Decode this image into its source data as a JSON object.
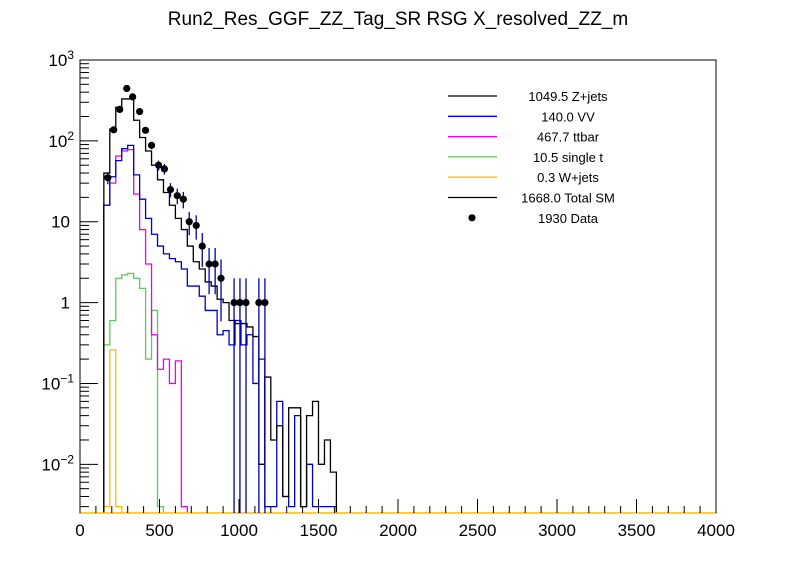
{
  "chart_data": {
    "type": "histogram",
    "title": "Run2_Res_GGF_ZZ_Tag_SR RSG  X_resolved_ZZ_m",
    "xlabel": "",
    "ylabel": "",
    "xlim": [
      0,
      4000
    ],
    "ylim": [
      0.0025,
      1000
    ],
    "yscale": "log",
    "grid": false,
    "legend_position": "top-right",
    "x_ticks": [
      "0",
      "500",
      "1000",
      "1500",
      "2000",
      "2500",
      "3000",
      "3500",
      "4000"
    ],
    "x_tick_values": [
      0,
      500,
      1000,
      1500,
      2000,
      2500,
      3000,
      3500,
      4000
    ],
    "y_ticks": [
      {
        "value": 1000,
        "base": "10",
        "exp": "3"
      },
      {
        "value": 100,
        "base": "10",
        "exp": "2"
      },
      {
        "value": 10,
        "base": "10",
        "exp": ""
      },
      {
        "value": 1,
        "base": "1",
        "exp": ""
      },
      {
        "value": 0.1,
        "base": "10",
        "exp": "−1"
      },
      {
        "value": 0.01,
        "base": "10",
        "exp": "−2"
      }
    ],
    "bin_edges_start": 150,
    "bin_width": 37.5,
    "series": [
      {
        "name": "Total SM",
        "color": "#000000",
        "values": [
          40,
          140,
          260,
          330,
          330,
          180,
          110,
          75,
          50,
          33,
          23,
          16,
          11,
          8,
          5,
          3.2,
          2.6,
          1.8,
          1.6,
          1.1,
          1.0,
          0.6,
          0.55,
          0.55,
          0.5,
          0.38,
          0.01,
          0.12,
          0.02,
          0.03,
          0.004,
          0.05,
          0.05,
          0.003,
          0.04,
          0.06,
          0.01,
          0.02,
          0.008
        ]
      },
      {
        "name": "VV",
        "color": "#0000cc",
        "values": [
          16,
          36,
          57,
          80,
          88,
          38,
          19,
          11,
          7,
          5,
          4,
          3.5,
          3.2,
          2.6,
          1.6,
          1.6,
          1.2,
          0.8,
          0.8,
          0.4,
          0.45,
          0.3,
          0.6,
          0.3,
          0.4,
          0.1,
          0.2,
          0.003,
          0.003,
          0.06,
          0.004,
          0.003,
          0.04,
          0.003,
          0.01,
          0.003,
          0.003,
          0.003,
          0.003
        ]
      },
      {
        "name": "ttbar",
        "color": "#ee00ee",
        "values": [
          16,
          30,
          65,
          75,
          78,
          22,
          8,
          3,
          0.4,
          0.15,
          0.2,
          0.1,
          0.19,
          0.003
        ]
      },
      {
        "name": "single t",
        "color": "#55cc55",
        "values": [
          0.3,
          0.6,
          2.0,
          2.2,
          2.3,
          2.0,
          1.5,
          0.2,
          0.8,
          0.003
        ]
      },
      {
        "name": "W+jets",
        "color": "#ffbb00",
        "values": [
          0.003,
          0.26,
          0.003
        ]
      }
    ],
    "data_points": {
      "name": "Data",
      "color": "#000000",
      "x": [
        175,
        212,
        250,
        294,
        331,
        375,
        412,
        450,
        494,
        531,
        569,
        612,
        650,
        687,
        731,
        769,
        812,
        850,
        887,
        969,
        1006,
        1044,
        1125,
        1163
      ],
      "y": [
        35,
        137,
        245,
        445,
        350,
        230,
        135,
        88,
        50,
        45,
        25,
        21,
        19,
        10,
        9,
        5,
        3,
        3,
        2,
        1,
        1,
        1,
        1,
        1
      ]
    },
    "legend": [
      {
        "label": "1049.5 Z+jets",
        "color": "#000000",
        "kind": "line"
      },
      {
        "label": "140.0 VV",
        "color": "#0000cc",
        "kind": "line"
      },
      {
        "label": "467.7 ttbar",
        "color": "#ee00ee",
        "kind": "line"
      },
      {
        "label": "10.5 single t",
        "color": "#55cc55",
        "kind": "line"
      },
      {
        "label": "0.3 W+jets",
        "color": "#ffbb00",
        "kind": "line"
      },
      {
        "label": "1668.0 Total SM",
        "color": "#000000",
        "kind": "line"
      },
      {
        "label": "1930 Data",
        "color": "#000000",
        "kind": "marker"
      }
    ]
  }
}
